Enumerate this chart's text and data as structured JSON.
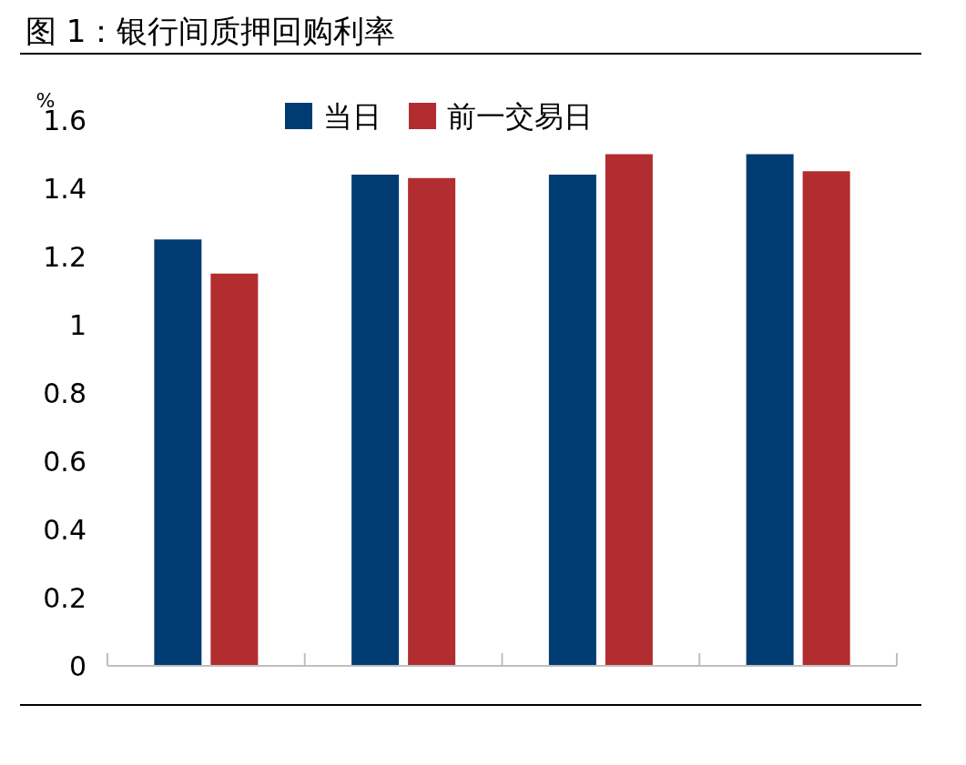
{
  "chart_data": {
    "type": "bar",
    "title": "图 1：银行间质押回购利率",
    "ylabel": "%",
    "categories": [
      null,
      null,
      null,
      null
    ],
    "series": [
      {
        "name": "当日",
        "color": "#003c71",
        "values": [
          1.25,
          1.44,
          1.44,
          1.5
        ]
      },
      {
        "name": "前一交易日",
        "color": "#b22d30",
        "values": [
          1.15,
          1.43,
          1.5,
          1.45
        ]
      }
    ],
    "ylim": [
      0,
      1.6
    ],
    "yticks": [
      0,
      0.2,
      0.4,
      0.6,
      0.8,
      1,
      1.2,
      1.4,
      1.6
    ],
    "grid": false,
    "legend": "top"
  }
}
